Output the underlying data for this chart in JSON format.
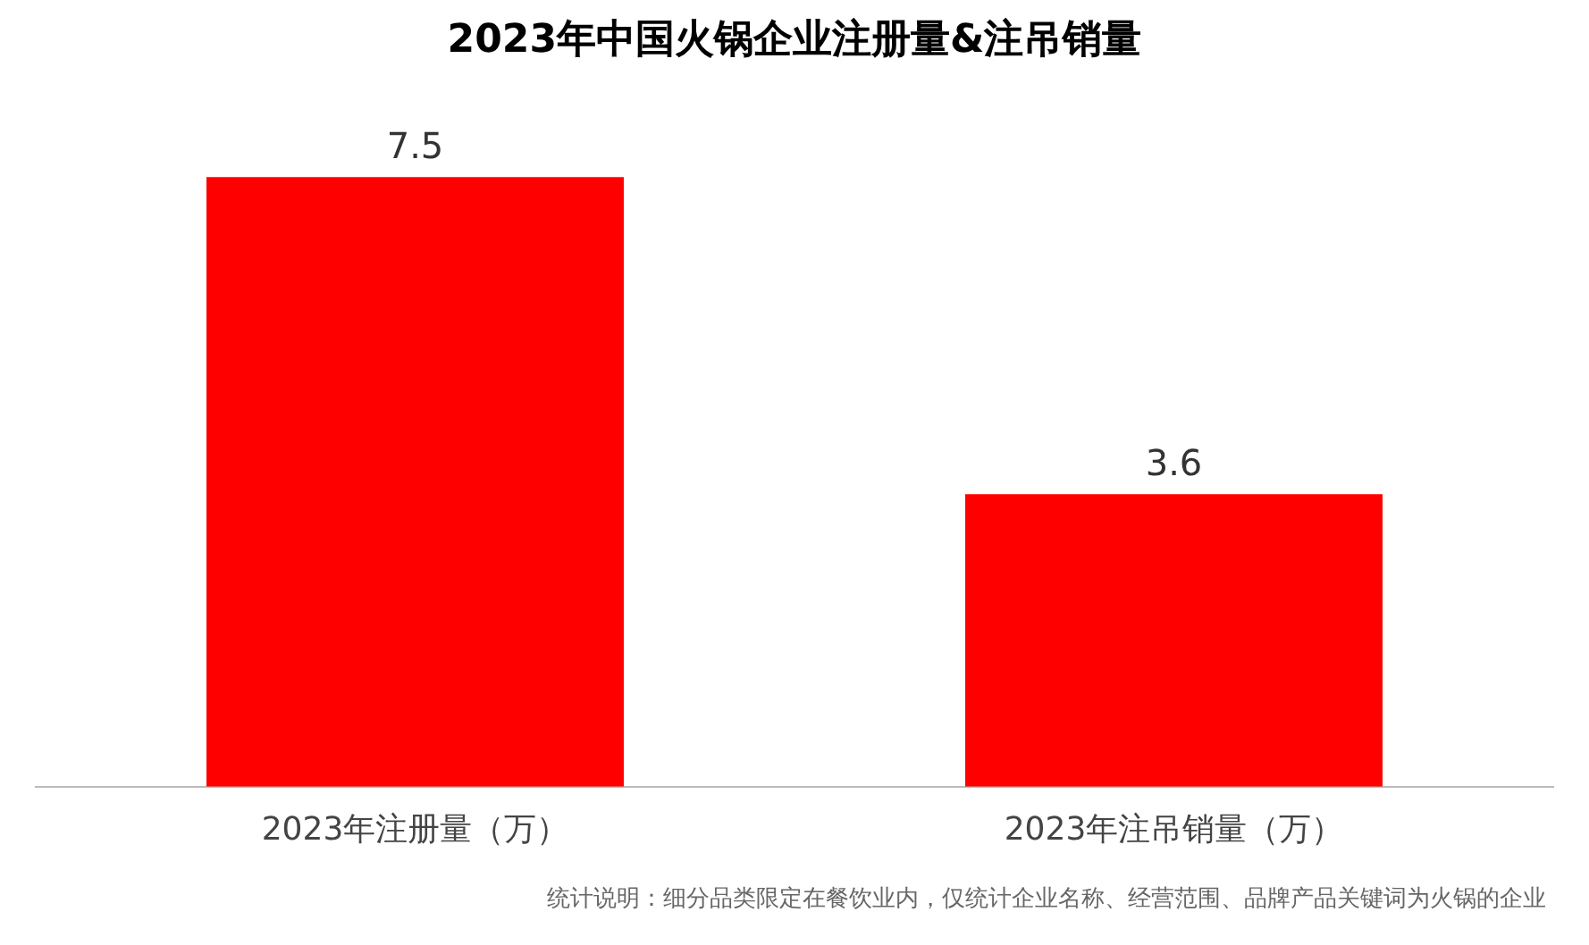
{
  "chart_data": {
    "type": "bar",
    "title": "2023年中国火锅企业注册量&注吊销量",
    "categories": [
      "2023年注册量（万）",
      "2023年注吊销量（万）"
    ],
    "values": [
      7.5,
      3.6
    ],
    "color": "#ff0000",
    "data_labels": true,
    "grid": false,
    "legend": false,
    "annotations": [
      "统计说明：细分品类限定在餐饮业内，仅统计企业名称、经营范围、品牌产品关键词为火锅的企业"
    ]
  }
}
